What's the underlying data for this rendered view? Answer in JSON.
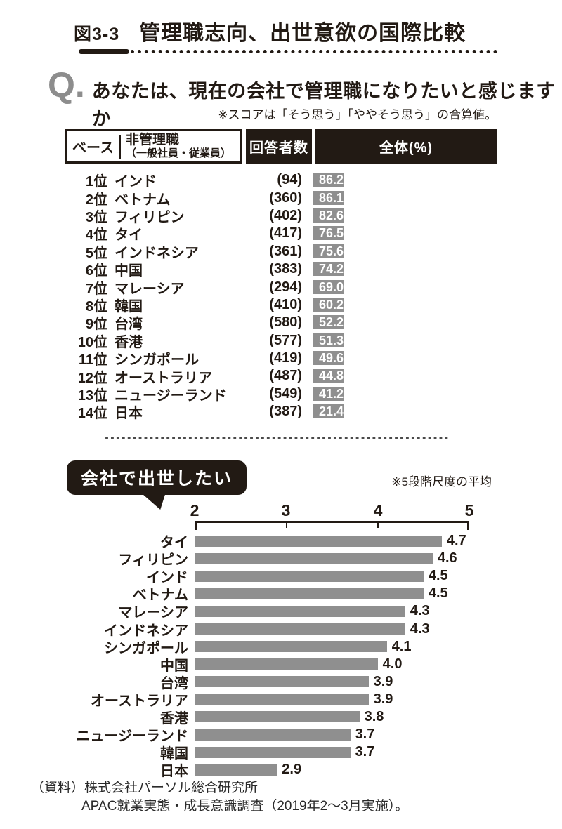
{
  "figure_header": {
    "tag": "図3-3",
    "title": "管理職志向、出世意欲の国際比較"
  },
  "question": {
    "mark": "Q.",
    "text": "あなたは、現在の会社で管理職になりたいと感じますか",
    "note": "※スコアは「そう思う」「ややそう思う」の合算値。"
  },
  "ranking_table": {
    "header": {
      "base": "ベース",
      "group_line1": "非管理職",
      "group_line2": "（一般社員・従業員）",
      "respondents": "回答者数",
      "overall": "全体(%)"
    },
    "rows": [
      {
        "rank": "1位",
        "country": "インド",
        "n": "(94)",
        "value": 86.2,
        "display": "86.2"
      },
      {
        "rank": "2位",
        "country": "ベトナム",
        "n": "(360)",
        "value": 86.1,
        "display": "86.1"
      },
      {
        "rank": "3位",
        "country": "フィリピン",
        "n": "(402)",
        "value": 82.6,
        "display": "82.6"
      },
      {
        "rank": "4位",
        "country": "タイ",
        "n": "(417)",
        "value": 76.5,
        "display": "76.5"
      },
      {
        "rank": "5位",
        "country": "インドネシア",
        "n": "(361)",
        "value": 75.6,
        "display": "75.6"
      },
      {
        "rank": "6位",
        "country": "中国",
        "n": "(383)",
        "value": 74.2,
        "display": "74.2"
      },
      {
        "rank": "7位",
        "country": "マレーシア",
        "n": "(294)",
        "value": 69.0,
        "display": "69.0"
      },
      {
        "rank": "8位",
        "country": "韓国",
        "n": "(410)",
        "value": 60.2,
        "display": "60.2"
      },
      {
        "rank": "9位",
        "country": "台湾",
        "n": "(580)",
        "value": 52.2,
        "display": "52.2"
      },
      {
        "rank": "10位",
        "country": "香港",
        "n": "(577)",
        "value": 51.3,
        "display": "51.3"
      },
      {
        "rank": "11位",
        "country": "シンガポール",
        "n": "(419)",
        "value": 49.6,
        "display": "49.6"
      },
      {
        "rank": "12位",
        "country": "オーストラリア",
        "n": "(487)",
        "value": 44.8,
        "display": "44.8"
      },
      {
        "rank": "13位",
        "country": "ニュージーランド",
        "n": "(549)",
        "value": 41.2,
        "display": "41.2"
      },
      {
        "rank": "14位",
        "country": "日本",
        "n": "(387)",
        "value": 21.4,
        "display": "21.4"
      }
    ]
  },
  "promotion_chart": {
    "bubble": "会社で出世したい",
    "note": "※5段階尺度の平均",
    "axis_ticks": [
      "2",
      "3",
      "4",
      "5"
    ],
    "bars": [
      {
        "label": "タイ",
        "value": 4.7,
        "display": "4.7"
      },
      {
        "label": "フィリピン",
        "value": 4.6,
        "display": "4.6"
      },
      {
        "label": "インド",
        "value": 4.5,
        "display": "4.5"
      },
      {
        "label": "ベトナム",
        "value": 4.5,
        "display": "4.5"
      },
      {
        "label": "マレーシア",
        "value": 4.3,
        "display": "4.3"
      },
      {
        "label": "インドネシア",
        "value": 4.3,
        "display": "4.3"
      },
      {
        "label": "シンガポール",
        "value": 4.1,
        "display": "4.1"
      },
      {
        "label": "中国",
        "value": 4.0,
        "display": "4.0"
      },
      {
        "label": "台湾",
        "value": 3.9,
        "display": "3.9"
      },
      {
        "label": "オーストラリア",
        "value": 3.9,
        "display": "3.9"
      },
      {
        "label": "香港",
        "value": 3.8,
        "display": "3.8"
      },
      {
        "label": "ニュージーランド",
        "value": 3.7,
        "display": "3.7"
      },
      {
        "label": "韓国",
        "value": 3.7,
        "display": "3.7"
      },
      {
        "label": "日本",
        "value": 2.9,
        "display": "2.9"
      }
    ]
  },
  "source": {
    "line1": "（資料）株式会社パーソル総合研究所",
    "line2": "APAC就業実態・成長意識調査（2019年2〜3月実施）。"
  },
  "colors": {
    "ink": "#221a14",
    "bar_gray": "#8f8f8f",
    "q_gray": "#8d8d8d"
  },
  "chart_data": [
    {
      "type": "bar",
      "orientation": "horizontal",
      "title": "あなたは、現在の会社で管理職になりたいと感じますか",
      "subtitle": "※スコアは「そう思う」「ややそう思う」の合算値。",
      "ylabel": "非管理職（一般社員・従業員）",
      "xlabel": "全体(%)",
      "categories": [
        "インド",
        "ベトナム",
        "フィリピン",
        "タイ",
        "インドネシア",
        "中国",
        "マレーシア",
        "韓国",
        "台湾",
        "香港",
        "シンガポール",
        "オーストラリア",
        "ニュージーランド",
        "日本"
      ],
      "values": [
        86.2,
        86.1,
        82.6,
        76.5,
        75.6,
        74.2,
        69.0,
        60.2,
        52.2,
        51.3,
        49.6,
        44.8,
        41.2,
        21.4
      ],
      "respondents": [
        94,
        360,
        402,
        417,
        361,
        383,
        294,
        410,
        580,
        577,
        419,
        487,
        549,
        387
      ],
      "xlim": [
        0,
        100
      ],
      "grid": false,
      "legend": "none"
    },
    {
      "type": "bar",
      "orientation": "horizontal",
      "title": "会社で出世したい",
      "subtitle": "※5段階尺度の平均",
      "categories": [
        "タイ",
        "フィリピン",
        "インド",
        "ベトナム",
        "マレーシア",
        "インドネシア",
        "シンガポール",
        "中国",
        "台湾",
        "オーストラリア",
        "香港",
        "ニュージーランド",
        "韓国",
        "日本"
      ],
      "values": [
        4.7,
        4.6,
        4.5,
        4.5,
        4.3,
        4.3,
        4.1,
        4.0,
        3.9,
        3.9,
        3.8,
        3.7,
        3.7,
        2.9
      ],
      "xlim": [
        2,
        5
      ],
      "xticks": [
        2,
        3,
        4,
        5
      ],
      "grid": false,
      "legend": "none"
    }
  ]
}
